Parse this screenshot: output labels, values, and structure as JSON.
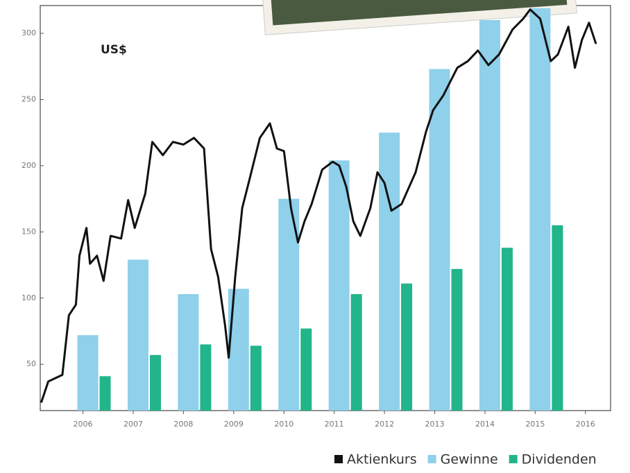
{
  "chart_data": {
    "type": "bar",
    "unit_label": "US$",
    "x": [
      2006,
      2007,
      2008,
      2009,
      2010,
      2011,
      2012,
      2013,
      2014,
      2015
    ],
    "series": [
      {
        "name": "Aktienkurs",
        "type": "line",
        "color": "#111111",
        "x": [
          2005.17,
          2005.31,
          2005.59,
          2005.72,
          2005.86,
          2005.93,
          2006.07,
          2006.14,
          2006.28,
          2006.41,
          2006.55,
          2006.76,
          2006.9,
          2007.03,
          2007.24,
          2007.38,
          2007.59,
          2007.79,
          2008,
          2008.21,
          2008.41,
          2008.55,
          2008.69,
          2008.83,
          2008.9,
          2009.03,
          2009.17,
          2009.31,
          2009.52,
          2009.72,
          2009.86,
          2010,
          2010.14,
          2010.28,
          2010.41,
          2010.55,
          2010.76,
          2010.97,
          2011.1,
          2011.24,
          2011.38,
          2011.52,
          2011.72,
          2011.86,
          2012,
          2012.14,
          2012.34,
          2012.62,
          2012.83,
          2012.97,
          2013.17,
          2013.45,
          2013.66,
          2013.86,
          2014.07,
          2014.28,
          2014.55,
          2014.76,
          2014.9,
          2015.1,
          2015.31,
          2015.45,
          2015.66,
          2015.79,
          2015.93,
          2016.07,
          2016.21
        ],
        "values": [
          21,
          37,
          42,
          87,
          95,
          132,
          153,
          126,
          132,
          113,
          147,
          145,
          174,
          153,
          179,
          218,
          208,
          218,
          216,
          221,
          213,
          137,
          116,
          79,
          55,
          116,
          168,
          189,
          221,
          232,
          213,
          211,
          168,
          142,
          158,
          171,
          197,
          203,
          200,
          184,
          158,
          147,
          168,
          195,
          187,
          166,
          171,
          195,
          226,
          242,
          253,
          274,
          279,
          287,
          276,
          284,
          303,
          311,
          318,
          311,
          279,
          284,
          305,
          274,
          295,
          308,
          292
        ]
      },
      {
        "name": "Gewinne",
        "color": "#8fd0ea",
        "values": [
          72,
          129,
          103,
          107,
          175,
          204,
          225,
          273,
          310,
          319
        ]
      },
      {
        "name": "Dividenden",
        "color": "#22b48a",
        "values": [
          41,
          57,
          65,
          64,
          77,
          103,
          111,
          122,
          138,
          155
        ]
      }
    ],
    "xlim": [
      2005.15,
      2016.5
    ],
    "xticks": [
      2006,
      2007,
      2008,
      2009,
      2010,
      2011,
      2012,
      2013,
      2014,
      2015,
      2016
    ],
    "ylim": [
      15,
      321
    ],
    "yticks": [
      50,
      100,
      150,
      200,
      250,
      300
    ]
  }
}
